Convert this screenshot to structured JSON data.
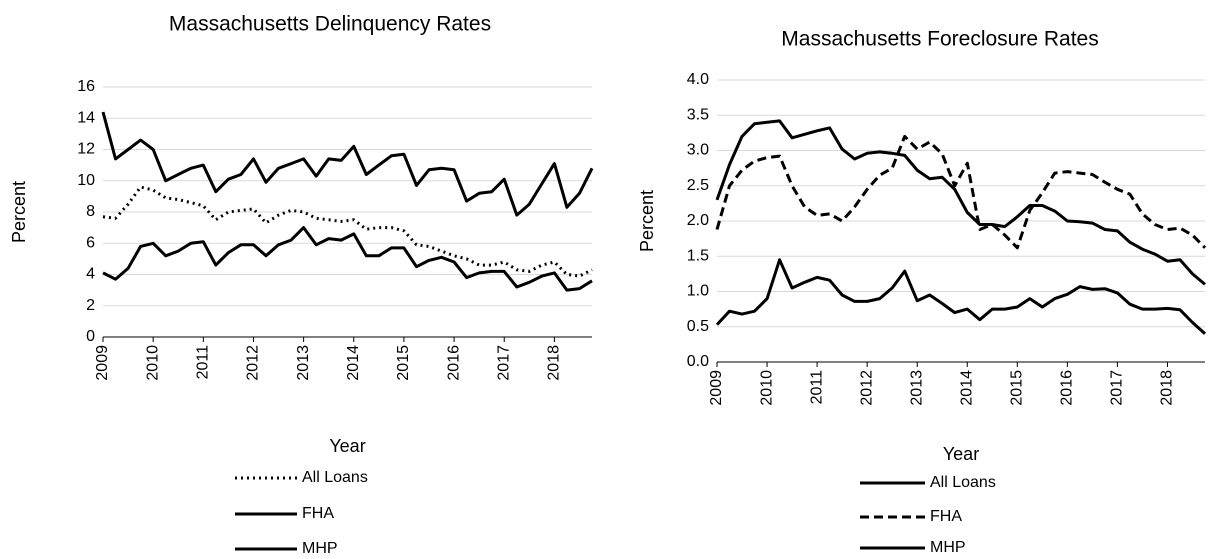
{
  "chart_data": [
    {
      "type": "line",
      "title": "Massachusetts Delinquency Rates",
      "x_label": "Year",
      "y_label": "Percent",
      "categories": [
        "2009",
        null,
        null,
        null,
        "2010",
        null,
        null,
        null,
        "2011",
        null,
        null,
        null,
        "2012",
        null,
        null,
        null,
        "2013",
        null,
        null,
        null,
        "2014",
        null,
        null,
        null,
        "2015",
        null,
        null,
        null,
        "2016",
        null,
        null,
        null,
        "2017",
        null,
        null,
        null,
        "2018",
        null,
        null,
        null
      ],
      "ylim": [
        0,
        16
      ],
      "yticks": [
        0,
        2,
        4,
        6,
        8,
        10,
        12,
        14,
        16
      ],
      "grid": true,
      "series": [
        {
          "name": "All Loans",
          "color": "#000000",
          "dash": "dotted",
          "values": [
            7.7,
            7.6,
            8.5,
            9.6,
            9.4,
            8.9,
            8.8,
            8.6,
            8.4,
            7.5,
            8,
            8.1,
            8.2,
            7.3,
            7.8,
            8.1,
            8,
            7.6,
            7.5,
            7.4,
            7.5,
            6.9,
            7,
            7,
            6.8,
            5.9,
            5.8,
            5.5,
            5.2,
            5,
            4.6,
            4.6,
            4.8,
            4.3,
            4.2,
            4.6,
            4.8,
            4,
            3.9,
            4.3
          ]
        },
        {
          "name": "FHA",
          "color": "#000000",
          "dash": "solid",
          "values": [
            14.4,
            11.4,
            12,
            12.6,
            12,
            10,
            10.4,
            10.8,
            11,
            9.3,
            10.1,
            10.4,
            11.4,
            9.9,
            10.8,
            11.1,
            11.4,
            10.3,
            11.4,
            11.3,
            12.2,
            10.4,
            11,
            11.6,
            11.7,
            9.7,
            10.7,
            10.8,
            10.7,
            8.7,
            9.2,
            9.3,
            10.1,
            7.8,
            8.5,
            9.8,
            11.1,
            8.3,
            9.2,
            10.8
          ]
        },
        {
          "name": "MHP",
          "color": "#000000",
          "dash": "solid",
          "values": [
            4.1,
            3.7,
            4.4,
            5.8,
            6,
            5.2,
            5.5,
            6,
            6.1,
            4.6,
            5.4,
            5.9,
            5.9,
            5.2,
            5.9,
            6.2,
            7,
            5.9,
            6.3,
            6.2,
            6.6,
            5.2,
            5.2,
            5.7,
            5.7,
            4.5,
            4.9,
            5.1,
            4.8,
            3.8,
            4.1,
            4.2,
            4.2,
            3.2,
            3.5,
            3.9,
            4.1,
            3,
            3.1,
            3.6
          ]
        }
      ]
    },
    {
      "type": "line",
      "title": "Massachusetts Foreclosure Rates",
      "x_label": "Year",
      "y_label": "Percent",
      "categories": [
        "2009",
        null,
        null,
        null,
        "2010",
        null,
        null,
        null,
        "2011",
        null,
        null,
        null,
        "2012",
        null,
        null,
        null,
        "2013",
        null,
        null,
        null,
        "2014",
        null,
        null,
        null,
        "2015",
        null,
        null,
        null,
        "2016",
        null,
        null,
        null,
        "2017",
        null,
        null,
        null,
        "2018",
        null,
        null,
        null
      ],
      "ylim": [
        0,
        4
      ],
      "yticks": [
        {
          "value": 0,
          "label": "0.0"
        },
        {
          "value": 0.5,
          "label": "0.5"
        },
        {
          "value": 1,
          "label": "1.0"
        },
        {
          "value": 1.5,
          "label": "1.5"
        },
        {
          "value": 2,
          "label": "2.0"
        },
        {
          "value": 2.5,
          "label": "2.5"
        },
        {
          "value": 3,
          "label": "3.0"
        },
        {
          "value": 3.5,
          "label": "3.5"
        },
        {
          "value": 4,
          "label": "4.0"
        }
      ],
      "grid": true,
      "series": [
        {
          "name": "All Loans",
          "color": "#000000",
          "dash": "solid",
          "values": [
            2.3,
            2.8,
            3.2,
            3.38,
            3.4,
            3.42,
            3.18,
            3.23,
            3.28,
            3.32,
            3.02,
            2.88,
            2.96,
            2.98,
            2.96,
            2.93,
            2.72,
            2.6,
            2.62,
            2.45,
            2.12,
            1.95,
            1.95,
            1.92,
            2.06,
            2.22,
            2.22,
            2.14,
            2,
            1.99,
            1.97,
            1.88,
            1.86,
            1.7,
            1.6,
            1.53,
            1.43,
            1.45,
            1.25,
            1.1
          ]
        },
        {
          "name": "FHA",
          "color": "#000000",
          "dash": "dashed",
          "values": [
            1.88,
            2.5,
            2.72,
            2.85,
            2.9,
            2.92,
            2.5,
            2.2,
            2.08,
            2.1,
            2,
            2.2,
            2.45,
            2.65,
            2.75,
            3.2,
            3.02,
            3.12,
            2.95,
            2.5,
            2.82,
            1.88,
            1.95,
            1.8,
            1.62,
            2.15,
            2.4,
            2.68,
            2.7,
            2.68,
            2.66,
            2.55,
            2.45,
            2.38,
            2.1,
            1.95,
            1.88,
            1.9,
            1.8,
            1.62
          ]
        },
        {
          "name": "MHP",
          "color": "#000000",
          "dash": "solid",
          "values": [
            0.53,
            0.72,
            0.68,
            0.72,
            0.9,
            1.45,
            1.05,
            1.13,
            1.2,
            1.16,
            0.95,
            0.86,
            0.86,
            0.9,
            1.05,
            1.29,
            0.87,
            0.95,
            0.83,
            0.7,
            0.75,
            0.6,
            0.75,
            0.75,
            0.78,
            0.9,
            0.78,
            0.9,
            0.96,
            1.07,
            1.03,
            1.04,
            0.98,
            0.82,
            0.75,
            0.75,
            0.76,
            0.74,
            0.56,
            0.4
          ]
        }
      ]
    }
  ]
}
